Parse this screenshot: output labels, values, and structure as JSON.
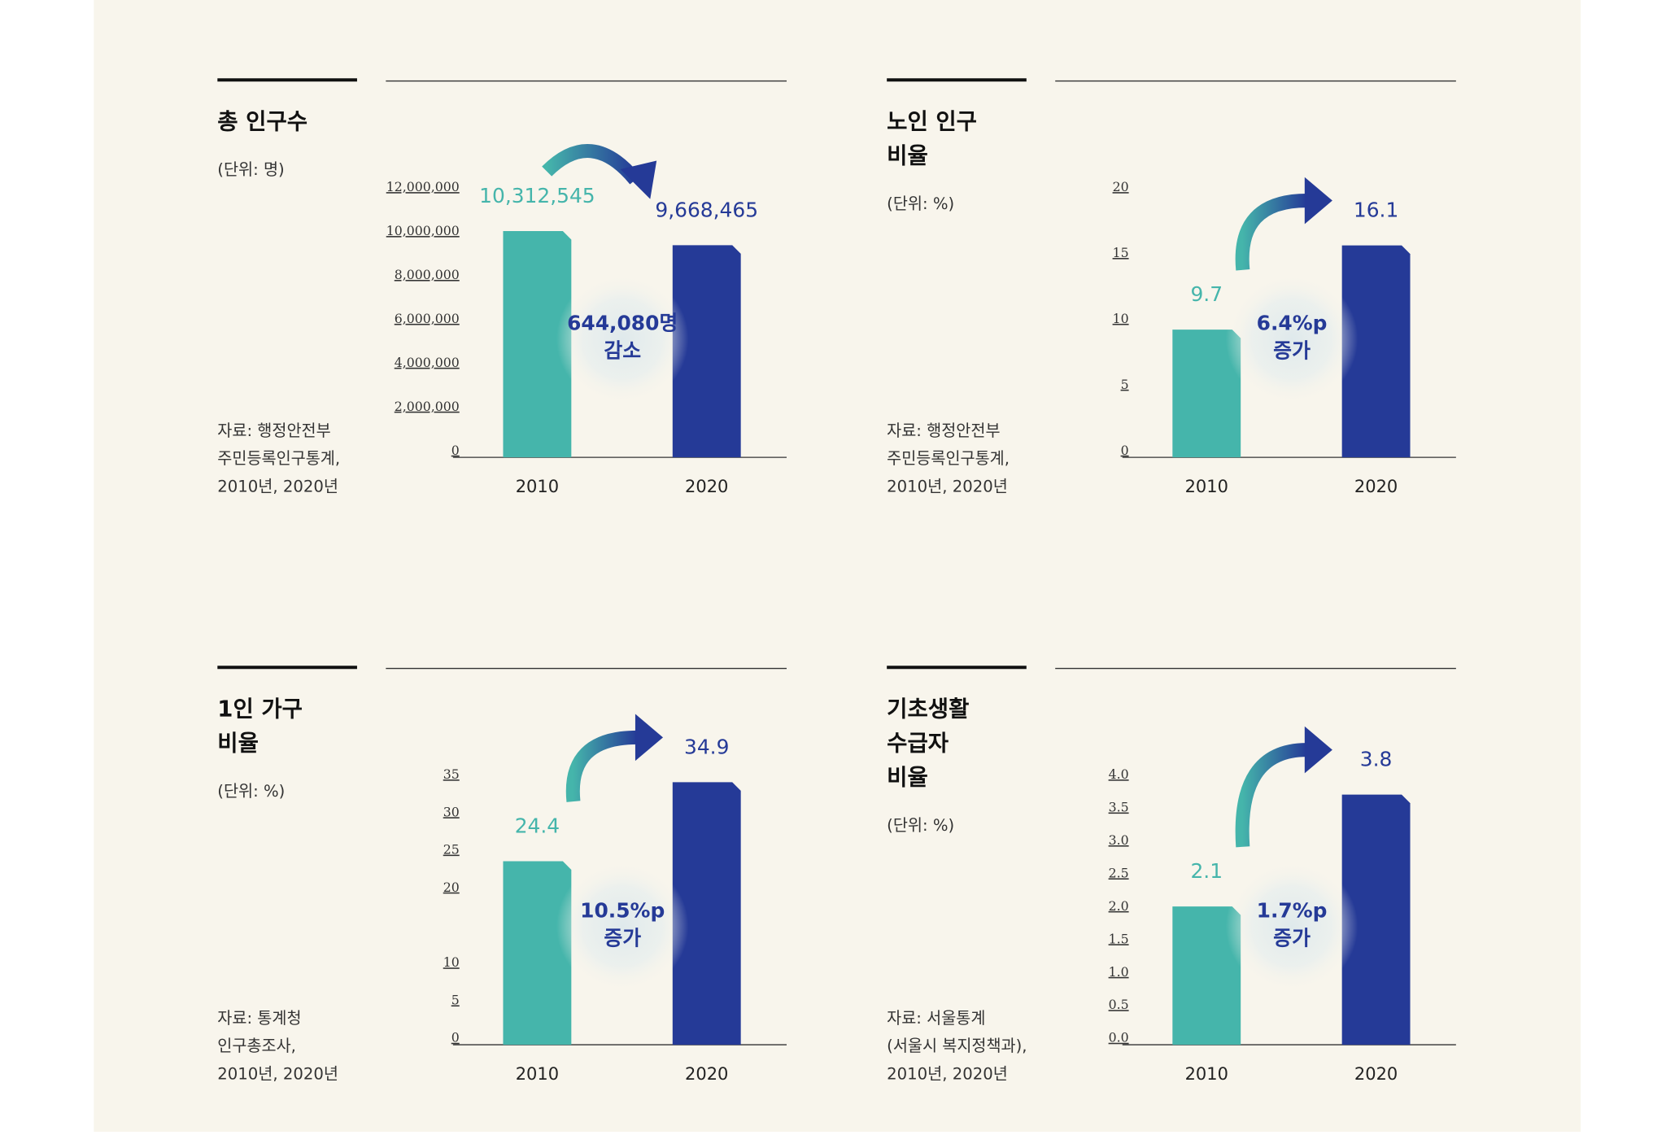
{
  "chart_data": [
    {
      "type": "bar",
      "title": [
        "총 인구수"
      ],
      "unit": "(단위: 명)",
      "source": [
        "자료: 행정안전부",
        "주민등록인구통계,",
        "2010년, 2020년"
      ],
      "categories": [
        "2010",
        "2020"
      ],
      "values": [
        10312545,
        9668465
      ],
      "value_labels": [
        "10,312,545",
        "9,668,465"
      ],
      "colors": [
        "#45b5ab",
        "#253a97"
      ],
      "ylim": [
        0,
        12000000
      ],
      "yticks": [
        0,
        {
          "value": 2000000,
          "label": "2,000,000"
        },
        {
          "value": 4000000,
          "label": "4,000,000"
        },
        {
          "value": 6000000,
          "label": "6,000,000"
        },
        {
          "value": 8000000,
          "label": "8,000,000"
        },
        {
          "value": 10000000,
          "label": "10,000,000"
        },
        {
          "value": 12000000,
          "label": "12,000,000"
        }
      ],
      "annotation": [
        "644,080명",
        "감소"
      ]
    },
    {
      "type": "bar",
      "title": [
        "노인 인구",
        "비율"
      ],
      "unit": "(단위: %)",
      "source": [
        "자료: 행정안전부",
        "주민등록인구통계,",
        "2010년, 2020년"
      ],
      "categories": [
        "2010",
        "2020"
      ],
      "values": [
        9.7,
        16.1
      ],
      "colors": [
        "#45b5ab",
        "#253a97"
      ],
      "ylim": [
        0,
        20
      ],
      "yticks": [
        0,
        5,
        10,
        15,
        20
      ],
      "annotation": [
        "6.4%p",
        "증가"
      ]
    },
    {
      "type": "bar",
      "title": [
        "1인 가구",
        "비율"
      ],
      "unit": "(단위: %)",
      "source": [
        "자료: 통계청",
        "인구총조사,",
        "2010년, 2020년"
      ],
      "categories": [
        "2010",
        "2020"
      ],
      "values": [
        24.4,
        34.9
      ],
      "colors": [
        "#45b5ab",
        "#253a97"
      ],
      "ylim": [
        0,
        35
      ],
      "yticks": [
        0,
        5,
        10,
        20,
        25,
        30,
        35
      ],
      "annotation": [
        "10.5%p",
        "증가"
      ]
    },
    {
      "type": "bar",
      "title": [
        "기초생활",
        "수급자",
        "비율"
      ],
      "unit": "(단위: %)",
      "source": [
        "자료: 서울통계",
        "(서울시 복지정책과),",
        "2010년, 2020년"
      ],
      "categories": [
        "2010",
        "2020"
      ],
      "values": [
        2.1,
        3.8
      ],
      "colors": [
        "#45b5ab",
        "#253a97"
      ],
      "ylim": [
        0,
        4
      ],
      "yticks": [
        {
          "value": 0,
          "label": "0.0"
        },
        0.5,
        {
          "value": 1,
          "label": "1.0"
        },
        1.5,
        {
          "value": 2,
          "label": "2.0"
        },
        2.5,
        {
          "value": 3,
          "label": "3.0"
        },
        3.5,
        {
          "value": 4,
          "label": "4.0"
        }
      ],
      "annotation": [
        "1.7%p",
        "증가"
      ]
    }
  ]
}
